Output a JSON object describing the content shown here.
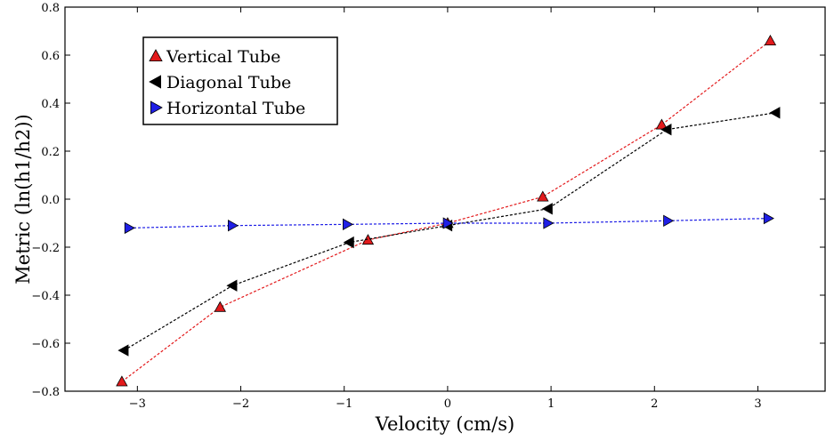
{
  "chart_data": {
    "type": "line",
    "xlabel": "Velocity (cm/s)",
    "ylabel": "Metric (ln(h1/h2))",
    "xlim": [
      -3.7,
      3.65
    ],
    "ylim": [
      -0.8,
      0.8
    ],
    "x_ticks": [
      -3,
      -2,
      -1,
      0,
      1,
      2,
      3
    ],
    "x_tick_labels": [
      "−3",
      "−2",
      "−1",
      "0",
      "1",
      "2",
      "3"
    ],
    "y_ticks": [
      -0.8,
      -0.6,
      -0.4,
      -0.2,
      0.0,
      0.2,
      0.4,
      0.6,
      0.8
    ],
    "y_tick_labels": [
      "−0.8",
      "−0.6",
      "−0.4",
      "−0.2",
      "0.0",
      "0.2",
      "0.4",
      "0.6",
      "0.8"
    ],
    "grid": false,
    "legend_position": "top-left",
    "series": [
      {
        "name": "Vertical Tube",
        "color": "#e31a1c",
        "marker": "triangle-up",
        "x": [
          -3.15,
          -2.2,
          -0.77,
          0.0,
          0.92,
          2.07,
          3.12
        ],
        "y": [
          -0.76,
          -0.45,
          -0.17,
          -0.1,
          0.01,
          0.31,
          0.66
        ]
      },
      {
        "name": "Diagonal Tube",
        "color": "#000000",
        "marker": "triangle-left",
        "x": [
          -3.13,
          -2.08,
          -0.95,
          0.0,
          0.97,
          2.12,
          3.17
        ],
        "y": [
          -0.63,
          -0.36,
          -0.18,
          -0.11,
          -0.04,
          0.29,
          0.36
        ]
      },
      {
        "name": "Horizontal Tube",
        "color": "#1f1fe6",
        "marker": "triangle-right",
        "x": [
          -3.08,
          -2.08,
          -0.97,
          0.0,
          0.97,
          2.13,
          3.1
        ],
        "y": [
          -0.12,
          -0.11,
          -0.105,
          -0.1,
          -0.1,
          -0.09,
          -0.08
        ]
      }
    ]
  }
}
